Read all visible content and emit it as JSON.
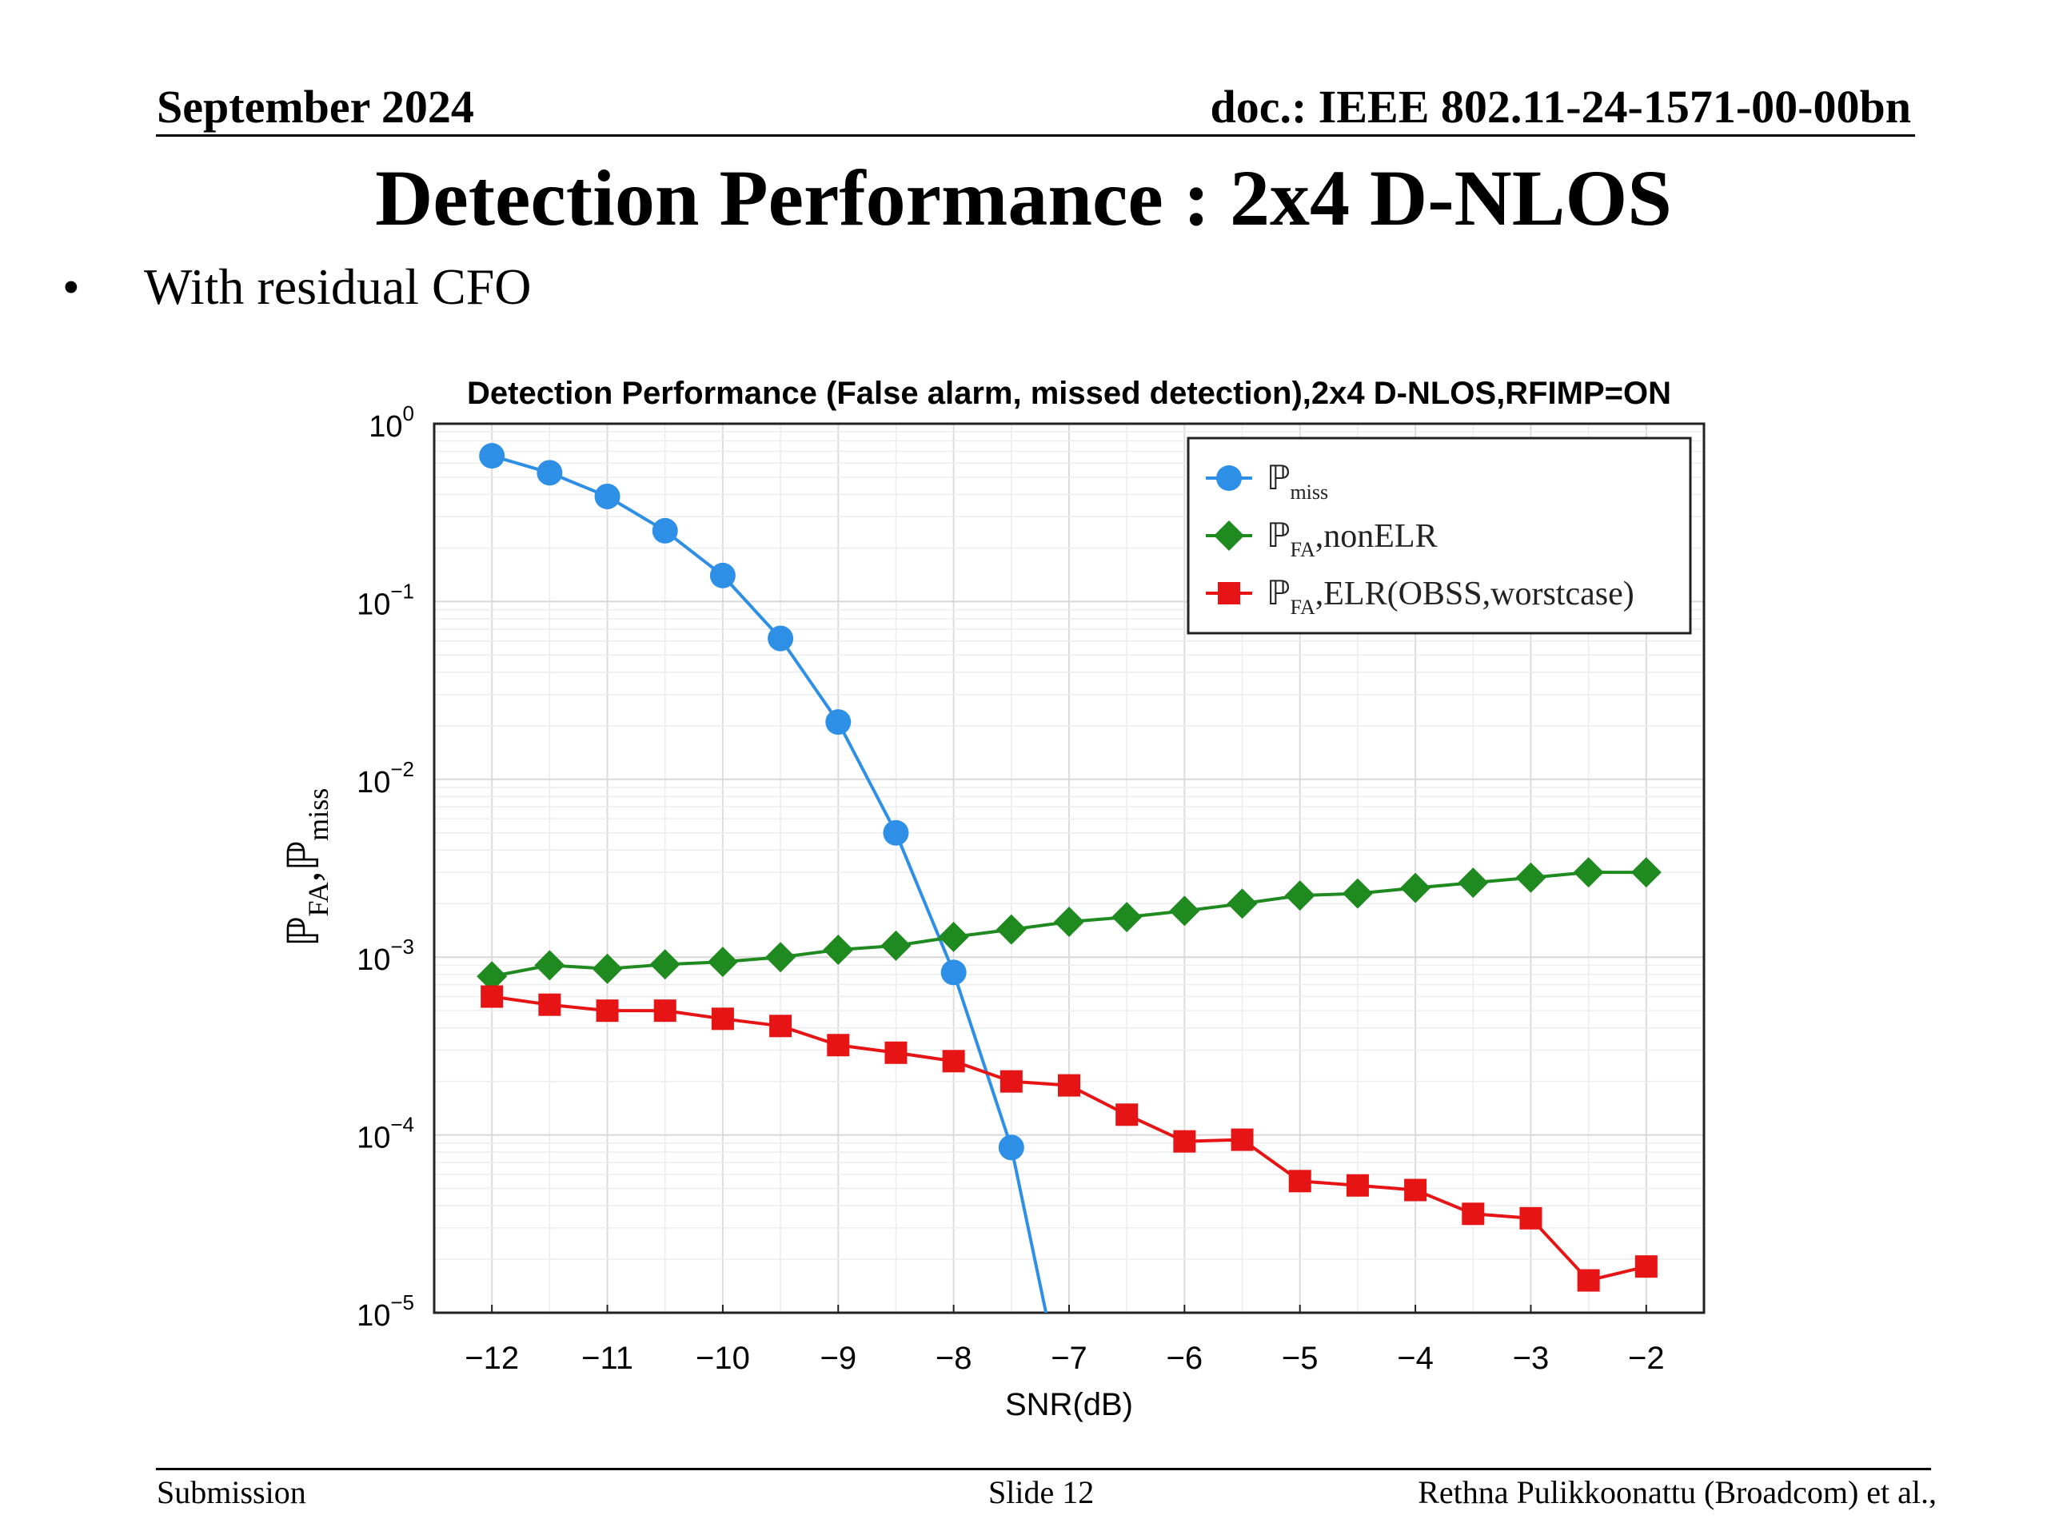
{
  "header": {
    "date": "September 2024",
    "doc": "doc.: IEEE 802.11-24-1571-00-00bn"
  },
  "slide": {
    "title": "Detection Performance : 2x4 D-NLOS",
    "bullet": "With residual CFO"
  },
  "footer": {
    "left": "Submission",
    "middle": "Slide 12",
    "right": "Rethna Pulikkoonattu (Broadcom) et al.,"
  },
  "colors": {
    "miss": "#2e8fe6",
    "nonelr": "#1f8a1f",
    "elr": "#e61414"
  },
  "chart_data": {
    "type": "line",
    "title": "Detection Performance (False alarm, missed detection),2x4 D-NLOS,RFIMP=ON",
    "xlabel": "SNR(dB)",
    "ylabel_main": "ℙ",
    "ylabel_sub1": "FA",
    "ylabel_sep": ",ℙ",
    "ylabel_sub2": "miss",
    "y_scale": "log",
    "xlim": [
      -12.5,
      -1.5
    ],
    "ylim": [
      1e-05,
      1
    ],
    "x_ticks": [
      -12,
      -11,
      -10,
      -9,
      -8,
      -7,
      -6,
      -5,
      -4,
      -3,
      -2
    ],
    "x_tick_labels": [
      "−12",
      "−11",
      "−10",
      "−9",
      "−8",
      "−7",
      "−6",
      "−5",
      "−4",
      "−3",
      "−2"
    ],
    "y_ticks": [
      {
        "value": 1,
        "base": "10",
        "exp": "0"
      },
      {
        "value": 0.1,
        "base": "10",
        "exp": "−1"
      },
      {
        "value": 0.01,
        "base": "10",
        "exp": "−2"
      },
      {
        "value": 0.001,
        "base": "10",
        "exp": "−3"
      },
      {
        "value": 0.0001,
        "base": "10",
        "exp": "−4"
      },
      {
        "value": 1e-05,
        "base": "10",
        "exp": "−5"
      }
    ],
    "grid": true,
    "legend_position": "top-right",
    "series": [
      {
        "key": "miss",
        "legend_main": "ℙ",
        "legend_sub": "miss",
        "legend_rest": "",
        "marker": "circle",
        "x": [
          -12,
          -11.5,
          -11,
          -10.5,
          -10,
          -9.5,
          -9,
          -8.5,
          -8,
          -7.5,
          -7.2
        ],
        "y": [
          0.66,
          0.53,
          0.39,
          0.25,
          0.14,
          0.062,
          0.021,
          0.005,
          0.00082,
          8.5e-05,
          1e-05
        ],
        "markers_count": 10
      },
      {
        "key": "nonelr",
        "legend_main": "ℙ",
        "legend_sub": "FA",
        "legend_rest": ",nonELR",
        "marker": "diamond",
        "x": [
          -12,
          -11.5,
          -11,
          -10.5,
          -10,
          -9.5,
          -9,
          -8.5,
          -8,
          -7.5,
          -7,
          -6.5,
          -6,
          -5.5,
          -5,
          -4.5,
          -4,
          -3.5,
          -3,
          -2.5,
          -2
        ],
        "y": [
          0.00078,
          0.0009,
          0.00086,
          0.00091,
          0.00094,
          0.001,
          0.0011,
          0.00116,
          0.0013,
          0.00143,
          0.00158,
          0.00168,
          0.00182,
          0.002,
          0.00222,
          0.00228,
          0.00245,
          0.00262,
          0.0028,
          0.003,
          0.003
        ],
        "markers_count": 21
      },
      {
        "key": "elr",
        "legend_main": "ℙ",
        "legend_sub": "FA",
        "legend_rest": ",ELR(OBSS,worstcase)",
        "marker": "square",
        "x": [
          -12,
          -11.5,
          -11,
          -10.5,
          -10,
          -9.5,
          -9,
          -8.5,
          -8,
          -7.5,
          -7,
          -6.5,
          -6,
          -5.5,
          -5,
          -4.5,
          -4,
          -3.5,
          -3,
          -2.5,
          -2
        ],
        "y": [
          0.0006,
          0.00054,
          0.0005,
          0.0005,
          0.00045,
          0.00041,
          0.00032,
          0.00029,
          0.00026,
          0.0002,
          0.00019,
          0.00013,
          9.2e-05,
          9.4e-05,
          5.5e-05,
          5.2e-05,
          4.9e-05,
          3.6e-05,
          3.4e-05,
          1.52e-05,
          1.82e-05
        ],
        "markers_count": 21
      }
    ]
  }
}
